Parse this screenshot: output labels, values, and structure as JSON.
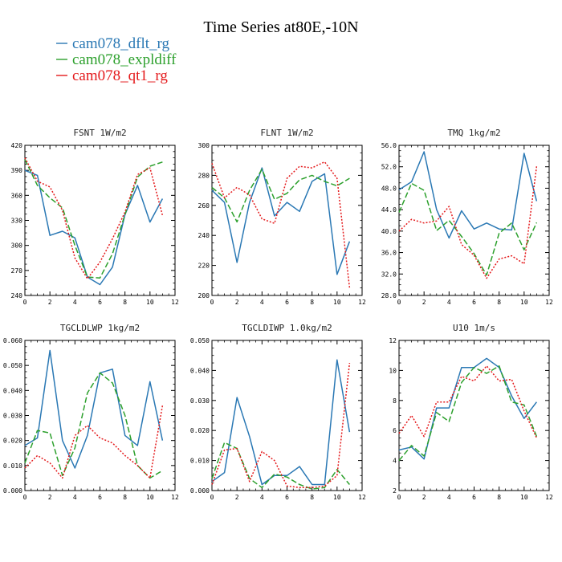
{
  "figure": {
    "title": "Time Series at80E,-10N",
    "legend": [
      {
        "label": "cam078_dflt_rg",
        "color": "#2a78b4",
        "dash": "solid"
      },
      {
        "label": "cam078_expldiff",
        "color": "#2ca02c",
        "dash": "dashed"
      },
      {
        "label": "cam078_qt1_rg",
        "color": "#e41a1c",
        "dash": "dotted"
      }
    ]
  },
  "chart_data": [
    {
      "type": "line",
      "title": "FSNT   1W/m2",
      "xlim": [
        0,
        12
      ],
      "x_ticks": [
        "0",
        "2",
        "4",
        "6",
        "8",
        "10",
        "12"
      ],
      "ylim": [
        240,
        420
      ],
      "y_ticks": [
        "240",
        "270",
        "300",
        "330",
        "360",
        "390",
        "420"
      ],
      "x": [
        0,
        1,
        2,
        3,
        4,
        5,
        6,
        7,
        8,
        9,
        10,
        11
      ],
      "series": [
        {
          "name": "cam078_dflt_rg",
          "values": [
            390,
            384,
            312,
            317,
            309,
            262,
            253,
            274,
            337,
            372,
            328,
            356
          ]
        },
        {
          "name": "cam078_expldiff",
          "values": [
            403,
            372,
            357,
            345,
            300,
            262,
            261,
            290,
            337,
            382,
            395,
            400
          ]
        },
        {
          "name": "cam078_qt1_rg",
          "values": [
            405,
            377,
            370,
            342,
            285,
            260,
            280,
            308,
            340,
            385,
            393,
            336
          ]
        }
      ]
    },
    {
      "type": "line",
      "title": "FLNT   1W/m2",
      "xlim": [
        0,
        12
      ],
      "x_ticks": [
        "0",
        "2",
        "4",
        "6",
        "8",
        "10",
        "12"
      ],
      "ylim": [
        200,
        300
      ],
      "y_ticks": [
        "200",
        "220",
        "240",
        "260",
        "280",
        "300"
      ],
      "x": [
        0,
        1,
        2,
        3,
        4,
        5,
        6,
        7,
        8,
        9,
        10,
        11
      ],
      "series": [
        {
          "name": "cam078_dflt_rg",
          "values": [
            270,
            262,
            222,
            262,
            285,
            253,
            262,
            256,
            276,
            281,
            214,
            236
          ]
        },
        {
          "name": "cam078_expldiff",
          "values": [
            272,
            265,
            249,
            270,
            284,
            264,
            268,
            277,
            280,
            276,
            273,
            278
          ]
        },
        {
          "name": "cam078_qt1_rg",
          "values": [
            288,
            265,
            272,
            267,
            251,
            248,
            278,
            286,
            285,
            289,
            278,
            205
          ]
        }
      ]
    },
    {
      "type": "line",
      "title": "TMQ   1kg/m2",
      "xlim": [
        0,
        12
      ],
      "x_ticks": [
        "0",
        "2",
        "4",
        "6",
        "8",
        "10",
        "12"
      ],
      "ylim": [
        28,
        56
      ],
      "y_ticks": [
        "28.0",
        "32.0",
        "36.0",
        "40.0",
        "44.0",
        "48.0",
        "52.0",
        "56.0"
      ],
      "x": [
        0,
        1,
        2,
        3,
        4,
        5,
        6,
        7,
        8,
        9,
        10,
        11
      ],
      "series": [
        {
          "name": "cam078_dflt_rg",
          "values": [
            47.7,
            49.2,
            54.8,
            44.0,
            38.7,
            43.8,
            40.4,
            41.5,
            40.4,
            40.2,
            54.5,
            45.6
          ]
        },
        {
          "name": "cam078_expldiff",
          "values": [
            43.5,
            48.9,
            47.6,
            40.1,
            42.0,
            39.0,
            35.8,
            31.8,
            39.6,
            41.5,
            36.5,
            41.6
          ]
        },
        {
          "name": "cam078_qt1_rg",
          "values": [
            40.0,
            42.2,
            41.5,
            41.9,
            44.6,
            37.5,
            35.5,
            31.2,
            34.8,
            35.4,
            33.9,
            52.1
          ]
        }
      ]
    },
    {
      "type": "line",
      "title": "TGCLDLWP   1kg/m2",
      "xlim": [
        0,
        12
      ],
      "x_ticks": [
        "0",
        "2",
        "4",
        "6",
        "8",
        "10",
        "12"
      ],
      "ylim": [
        0,
        0.06
      ],
      "y_ticks": [
        "0.000",
        "0.010",
        "0.020",
        "0.030",
        "0.040",
        "0.050",
        "0.060"
      ],
      "x": [
        0,
        1,
        2,
        3,
        4,
        5,
        6,
        7,
        8,
        9,
        10,
        11
      ],
      "series": [
        {
          "name": "cam078_dflt_rg",
          "values": [
            0.018,
            0.021,
            0.056,
            0.02,
            0.009,
            0.022,
            0.047,
            0.0485,
            0.022,
            0.018,
            0.0435,
            0.02
          ]
        },
        {
          "name": "cam078_expldiff",
          "values": [
            0.011,
            0.024,
            0.023,
            0.006,
            0.017,
            0.039,
            0.047,
            0.043,
            0.03,
            0.01,
            0.005,
            0.008
          ]
        },
        {
          "name": "cam078_qt1_rg",
          "values": [
            0.009,
            0.014,
            0.011,
            0.005,
            0.022,
            0.026,
            0.021,
            0.019,
            0.014,
            0.01,
            0.005,
            0.034
          ]
        }
      ]
    },
    {
      "type": "line",
      "title": "TGCLDIWP   1.0kg/m2",
      "xlim": [
        0,
        12
      ],
      "x_ticks": [
        "0",
        "2",
        "4",
        "6",
        "8",
        "10",
        "12"
      ],
      "ylim": [
        0,
        0.05
      ],
      "y_ticks": [
        "0.000",
        "0.010",
        "0.020",
        "0.030",
        "0.040",
        "0.050"
      ],
      "x": [
        0,
        1,
        2,
        3,
        4,
        5,
        6,
        7,
        8,
        9,
        10,
        11
      ],
      "series": [
        {
          "name": "cam078_dflt_rg",
          "values": [
            0.003,
            0.006,
            0.031,
            0.018,
            0.002,
            0.005,
            0.005,
            0.008,
            0.002,
            0.002,
            0.0435,
            0.0195
          ]
        },
        {
          "name": "cam078_expldiff",
          "values": [
            0.004,
            0.016,
            0.014,
            0.004,
            0.001,
            0.0055,
            0.0045,
            0.002,
            0.0005,
            0.001,
            0.007,
            0.002
          ]
        },
        {
          "name": "cam078_qt1_rg",
          "values": [
            0.002,
            0.0135,
            0.014,
            0.003,
            0.013,
            0.01,
            0.0015,
            0.001,
            0.001,
            0.0015,
            0.005,
            0.0425
          ]
        }
      ]
    },
    {
      "type": "line",
      "title": "U10   1m/s",
      "xlim": [
        0,
        12
      ],
      "x_ticks": [
        "0",
        "2",
        "4",
        "6",
        "8",
        "10",
        "12"
      ],
      "ylim": [
        2,
        12
      ],
      "y_ticks": [
        "2",
        "4",
        "6",
        "8",
        "10",
        "12"
      ],
      "x": [
        0,
        1,
        2,
        3,
        4,
        5,
        6,
        7,
        8,
        9,
        10,
        11
      ],
      "series": [
        {
          "name": "cam078_dflt_rg",
          "values": [
            4.7,
            4.9,
            4.1,
            7.5,
            7.5,
            10.2,
            10.2,
            10.8,
            10.2,
            8.3,
            6.8,
            7.9
          ]
        },
        {
          "name": "cam078_expldiff",
          "values": [
            4.0,
            5.0,
            4.3,
            7.2,
            6.6,
            9.2,
            10.2,
            9.8,
            10.3,
            7.9,
            7.7,
            5.6
          ]
        },
        {
          "name": "cam078_qt1_rg",
          "values": [
            5.8,
            7.0,
            5.6,
            7.9,
            7.9,
            9.6,
            9.3,
            10.3,
            9.3,
            9.4,
            7.3,
            5.5
          ]
        }
      ]
    }
  ]
}
